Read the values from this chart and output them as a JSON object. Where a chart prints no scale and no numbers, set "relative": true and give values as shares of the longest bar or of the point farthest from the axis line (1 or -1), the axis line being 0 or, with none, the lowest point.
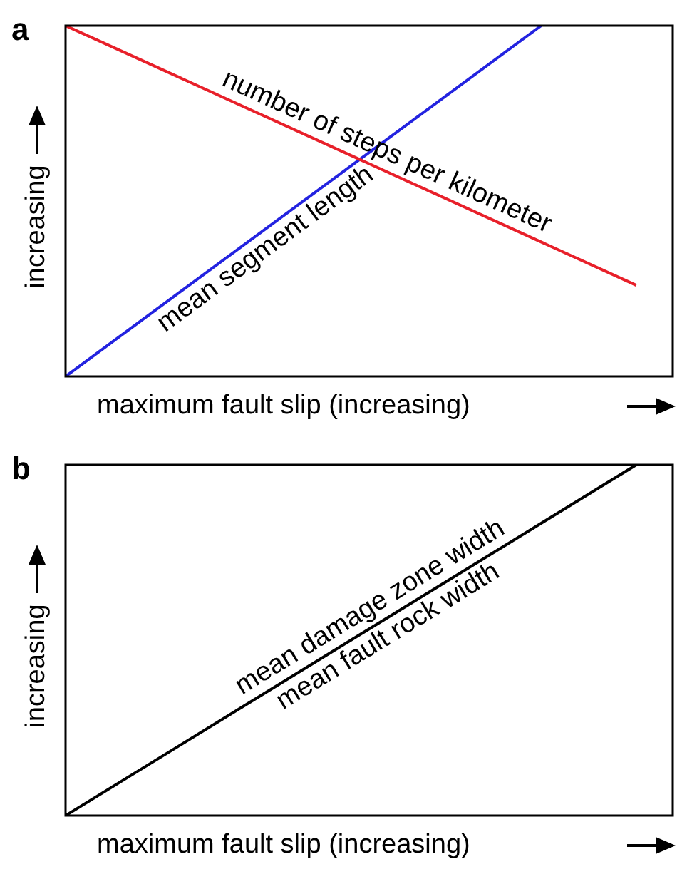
{
  "chart_data": [
    {
      "type": "line",
      "title": "a",
      "xlabel": "maximum fault slip (increasing)",
      "ylabel": "increasing",
      "relative": true,
      "legend": false,
      "marker": "none",
      "categories": [
        null,
        null,
        null,
        null,
        null,
        null,
        null
      ],
      "series": [
        {
          "name": "number of steps per kilometer",
          "color": "#e8202a",
          "values": [
            1,
            null,
            null,
            null,
            null,
            null,
            0.26
          ]
        },
        {
          "name": "mean segment length",
          "color": "#2323e0",
          "values": [
            0,
            null,
            null,
            null,
            null,
            1,
            null
          ]
        }
      ]
    },
    {
      "type": "line",
      "title": "b",
      "xlabel": "maximum fault slip (increasing)",
      "ylabel": "increasing",
      "relative": true,
      "legend": false,
      "marker": "none",
      "categories": [
        null,
        null,
        null,
        null,
        null,
        null,
        null
      ],
      "series": [
        {
          "name": "mean damage zone width",
          "color": "#000000",
          "values": [
            0,
            null,
            null,
            null,
            null,
            null,
            1
          ]
        }
      ],
      "annotations": [
        "mean fault rock width"
      ]
    }
  ]
}
